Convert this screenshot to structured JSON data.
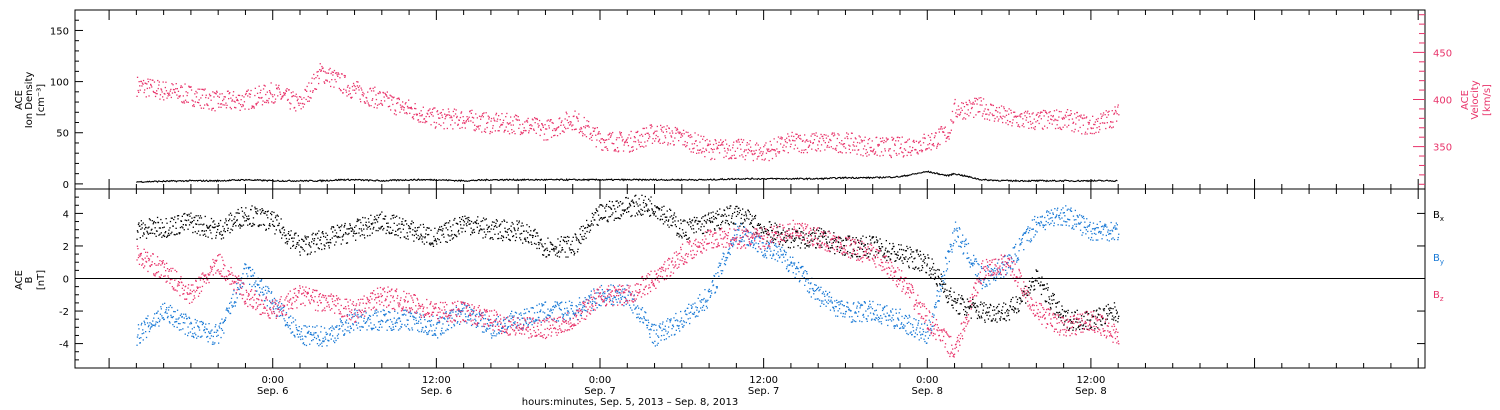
{
  "colors": {
    "density": "#000000",
    "velocity": "#e8336a",
    "bx": "#000000",
    "by": "#1a7ad6",
    "bz": "#e8336a"
  },
  "chart_data": [
    {
      "type": "scatter",
      "panel": "top",
      "time_range": [
        "Sep. 5, 2013 ~14:00",
        "Sep. 8 ~14:00"
      ],
      "ylabel_lines": [
        "ACE",
        "Ion Density"
      ],
      "ylabel_unit": "[cm⁻³]",
      "ylim": [
        -5,
        170
      ],
      "yticks": [
        "0",
        "50",
        "100",
        "150"
      ],
      "right_ylabel_lines": [
        "ACE",
        "Velocity"
      ],
      "right_ylabel_unit": "[km/s]",
      "right_ylim": [
        305,
        495
      ],
      "right_yticks": [
        "350",
        "400",
        "450"
      ],
      "x_hours": [
        -10,
        -6,
        -4,
        -2,
        0,
        2,
        3.5,
        5,
        6,
        8,
        10,
        12,
        14,
        16,
        18,
        20,
        22,
        24,
        26,
        28,
        30,
        32,
        34,
        36,
        38,
        40,
        42,
        44,
        46,
        48,
        49.5,
        50,
        52,
        54,
        56,
        58,
        60,
        62
      ],
      "series": [
        {
          "axis": "right",
          "values": [
            415,
            405,
            398,
            400,
            408,
            395,
            430,
            418,
            410,
            400,
            390,
            380,
            380,
            375,
            375,
            368,
            380,
            358,
            355,
            365,
            360,
            348,
            348,
            345,
            355,
            355,
            355,
            350,
            350,
            355,
            365,
            390,
            392,
            380,
            378,
            380,
            372,
            385
          ]
        },
        {
          "axis": "left",
          "values": [
            2,
            3,
            3,
            4,
            3,
            3,
            3,
            4,
            4,
            3,
            4,
            4,
            3,
            4,
            4,
            4,
            4,
            4,
            4,
            4,
            4,
            4,
            5,
            5,
            5,
            5,
            6,
            6,
            7,
            12,
            8,
            10,
            4,
            3,
            3,
            3,
            3,
            3
          ]
        }
      ]
    },
    {
      "type": "scatter",
      "panel": "bottom",
      "ylabel_lines": [
        "ACE",
        "B"
      ],
      "ylabel_unit": "[nT]",
      "ylim": [
        -5.5,
        5.5
      ],
      "yticks": [
        "-4",
        "-2",
        "0",
        "2",
        "4"
      ],
      "x_hours": [
        -10,
        -8,
        -6,
        -4,
        -2,
        0,
        2,
        4,
        6,
        8,
        10,
        12,
        14,
        16,
        18,
        20,
        22,
        24,
        26,
        28,
        30,
        32,
        34,
        36,
        38,
        40,
        42,
        44,
        46,
        48,
        50,
        52,
        54,
        56,
        58,
        60,
        62
      ],
      "series": [
        {
          "name": "B",
          "sub": "x",
          "values": [
            3.0,
            3.2,
            3.5,
            3.0,
            4.0,
            3.5,
            2.0,
            2.5,
            3.0,
            3.5,
            3.0,
            2.5,
            3.5,
            3.0,
            3.0,
            2.0,
            2.0,
            4.0,
            4.5,
            4.5,
            3.0,
            3.5,
            4.0,
            3.0,
            2.5,
            2.5,
            2.0,
            2.0,
            1.5,
            1.0,
            -1.5,
            -2.0,
            -2.0,
            0.0,
            -2.5,
            -2.5,
            -2.0
          ]
        },
        {
          "name": "B",
          "sub": "y",
          "values": [
            -3.5,
            -2.0,
            -3.0,
            -3.5,
            0.5,
            -1.5,
            -3.5,
            -3.5,
            -2.5,
            -2.5,
            -2.5,
            -3.0,
            -2.0,
            -3.0,
            -2.5,
            -2.0,
            -2.0,
            -1.0,
            -1.0,
            -3.5,
            -2.5,
            -1.0,
            3.0,
            2.0,
            1.0,
            -1.0,
            -2.0,
            -2.0,
            -2.5,
            -3.5,
            3.0,
            0.0,
            1.0,
            3.5,
            4.0,
            3.0,
            3.0
          ]
        },
        {
          "name": "B",
          "sub": "z",
          "values": [
            1.5,
            0.5,
            -1.0,
            1.0,
            -1.0,
            -2.0,
            -1.0,
            -1.5,
            -2.0,
            -1.0,
            -1.5,
            -2.0,
            -2.0,
            -2.5,
            -3.0,
            -3.0,
            -2.5,
            -1.0,
            -1.0,
            0.0,
            1.5,
            2.5,
            2.5,
            2.5,
            3.0,
            2.5,
            2.0,
            1.5,
            0.0,
            -2.5,
            -4.5,
            0.5,
            1.0,
            -2.0,
            -3.0,
            -2.5,
            -3.5
          ]
        }
      ],
      "xtick_hours": [
        0,
        12,
        24,
        36,
        48,
        60
      ],
      "xtick_labels": [
        [
          "0:00",
          "Sep. 6"
        ],
        [
          "12:00",
          "Sep. 6"
        ],
        [
          "0:00",
          "Sep. 7"
        ],
        [
          "12:00",
          "Sep. 7"
        ],
        [
          "0:00",
          "Sep. 8"
        ],
        [
          "12:00",
          "Sep. 8"
        ]
      ],
      "xlabel": "hours:minutes, Sep.  5, 2013 – Sep.  8, 2013"
    }
  ]
}
